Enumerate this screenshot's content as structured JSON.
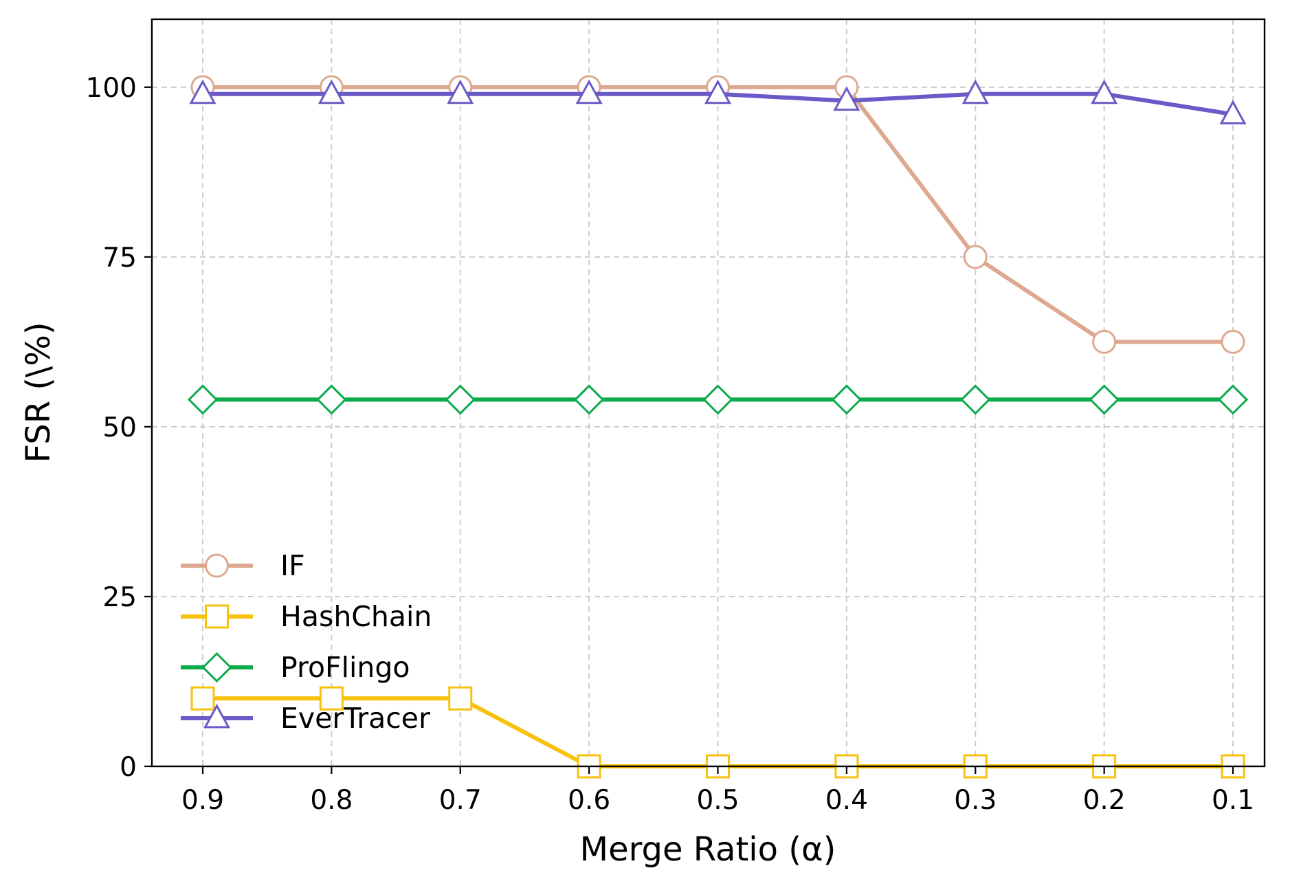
{
  "chart_data": {
    "type": "line",
    "xlabel": "Merge Ratio (α)",
    "ylabel": "FSR (\\%)",
    "x": [
      0.9,
      0.8,
      0.7,
      0.6,
      0.5,
      0.4,
      0.3,
      0.2,
      0.1
    ],
    "x_tick_labels": [
      "0.9",
      "0.8",
      "0.7",
      "0.6",
      "0.5",
      "0.4",
      "0.3",
      "0.2",
      "0.1"
    ],
    "x_reversed": true,
    "y_ticks": [
      0,
      25,
      50,
      75,
      100
    ],
    "y_tick_labels": [
      "0",
      "25",
      "50",
      "75",
      "100"
    ],
    "ylim": [
      0,
      110
    ],
    "grid": true,
    "legend_position": "lower-left",
    "series": [
      {
        "name": "IF",
        "color": "#dda890",
        "marker": "circle",
        "values": [
          100,
          100,
          100,
          100,
          100,
          100,
          75,
          62.5,
          62.5
        ]
      },
      {
        "name": "HashChain",
        "color": "#f7c10c",
        "marker": "square",
        "values": [
          10,
          10,
          10,
          0,
          0,
          0,
          0,
          0,
          0
        ]
      },
      {
        "name": "ProFlingo",
        "color": "#0aab4b",
        "marker": "diamond",
        "values": [
          54,
          54,
          54,
          54,
          54,
          54,
          54,
          54,
          54
        ]
      },
      {
        "name": "EverTracer",
        "color": "#6a5ac7",
        "marker": "triangle",
        "values": [
          99,
          99,
          99,
          99,
          99,
          98,
          99,
          99,
          96
        ]
      }
    ]
  }
}
